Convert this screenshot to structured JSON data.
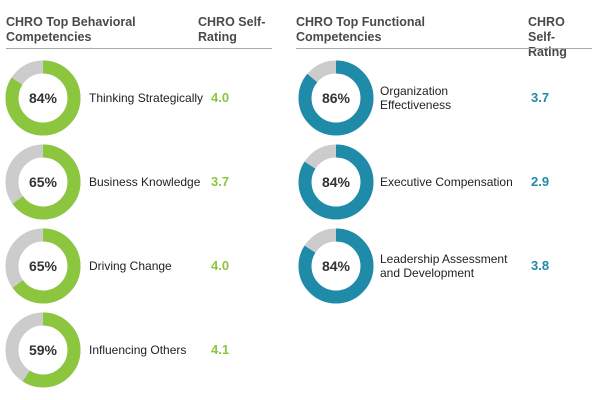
{
  "colors": {
    "green": "#8cc63f",
    "teal": "#1f8ba8",
    "remainder": "#cccccc",
    "header": "#4a4a4a"
  },
  "left": {
    "title": "CHRO Top Behavioral Competencies",
    "rating_header": "CHRO Self-Rating",
    "accent": "#8cc63f"
  },
  "right": {
    "title": "CHRO Top Functional Competencies",
    "rating_header": "CHRO Self-Rating",
    "accent": "#1f8ba8"
  },
  "chart_data": [
    {
      "type": "table",
      "title": "CHRO Top Behavioral Competencies",
      "columns": [
        "CHRO Top Behavioral Competencies",
        "CHRO Self-Rating"
      ],
      "rows": [
        {
          "percent": 84,
          "percent_label": "84%",
          "label": "Thinking Strategically",
          "rating": "4.0"
        },
        {
          "percent": 65,
          "percent_label": "65%",
          "label": "Business Knowledge",
          "rating": "3.7"
        },
        {
          "percent": 65,
          "percent_label": "65%",
          "label": "Driving Change",
          "rating": "4.0"
        },
        {
          "percent": 59,
          "percent_label": "59%",
          "label": "Influencing Others",
          "rating": "4.1"
        }
      ]
    },
    {
      "type": "table",
      "title": "CHRO Top Functional Competencies",
      "columns": [
        "CHRO Top Functional Competencies",
        "CHRO Self-Rating"
      ],
      "rows": [
        {
          "percent": 86,
          "percent_label": "86%",
          "label": "Organization Effectiveness",
          "rating": "3.7"
        },
        {
          "percent": 84,
          "percent_label": "84%",
          "label": "Executive Compensation",
          "rating": "2.9"
        },
        {
          "percent": 84,
          "percent_label": "84%",
          "label": "Leadership Assessment and Development",
          "rating": "3.8"
        }
      ]
    }
  ]
}
